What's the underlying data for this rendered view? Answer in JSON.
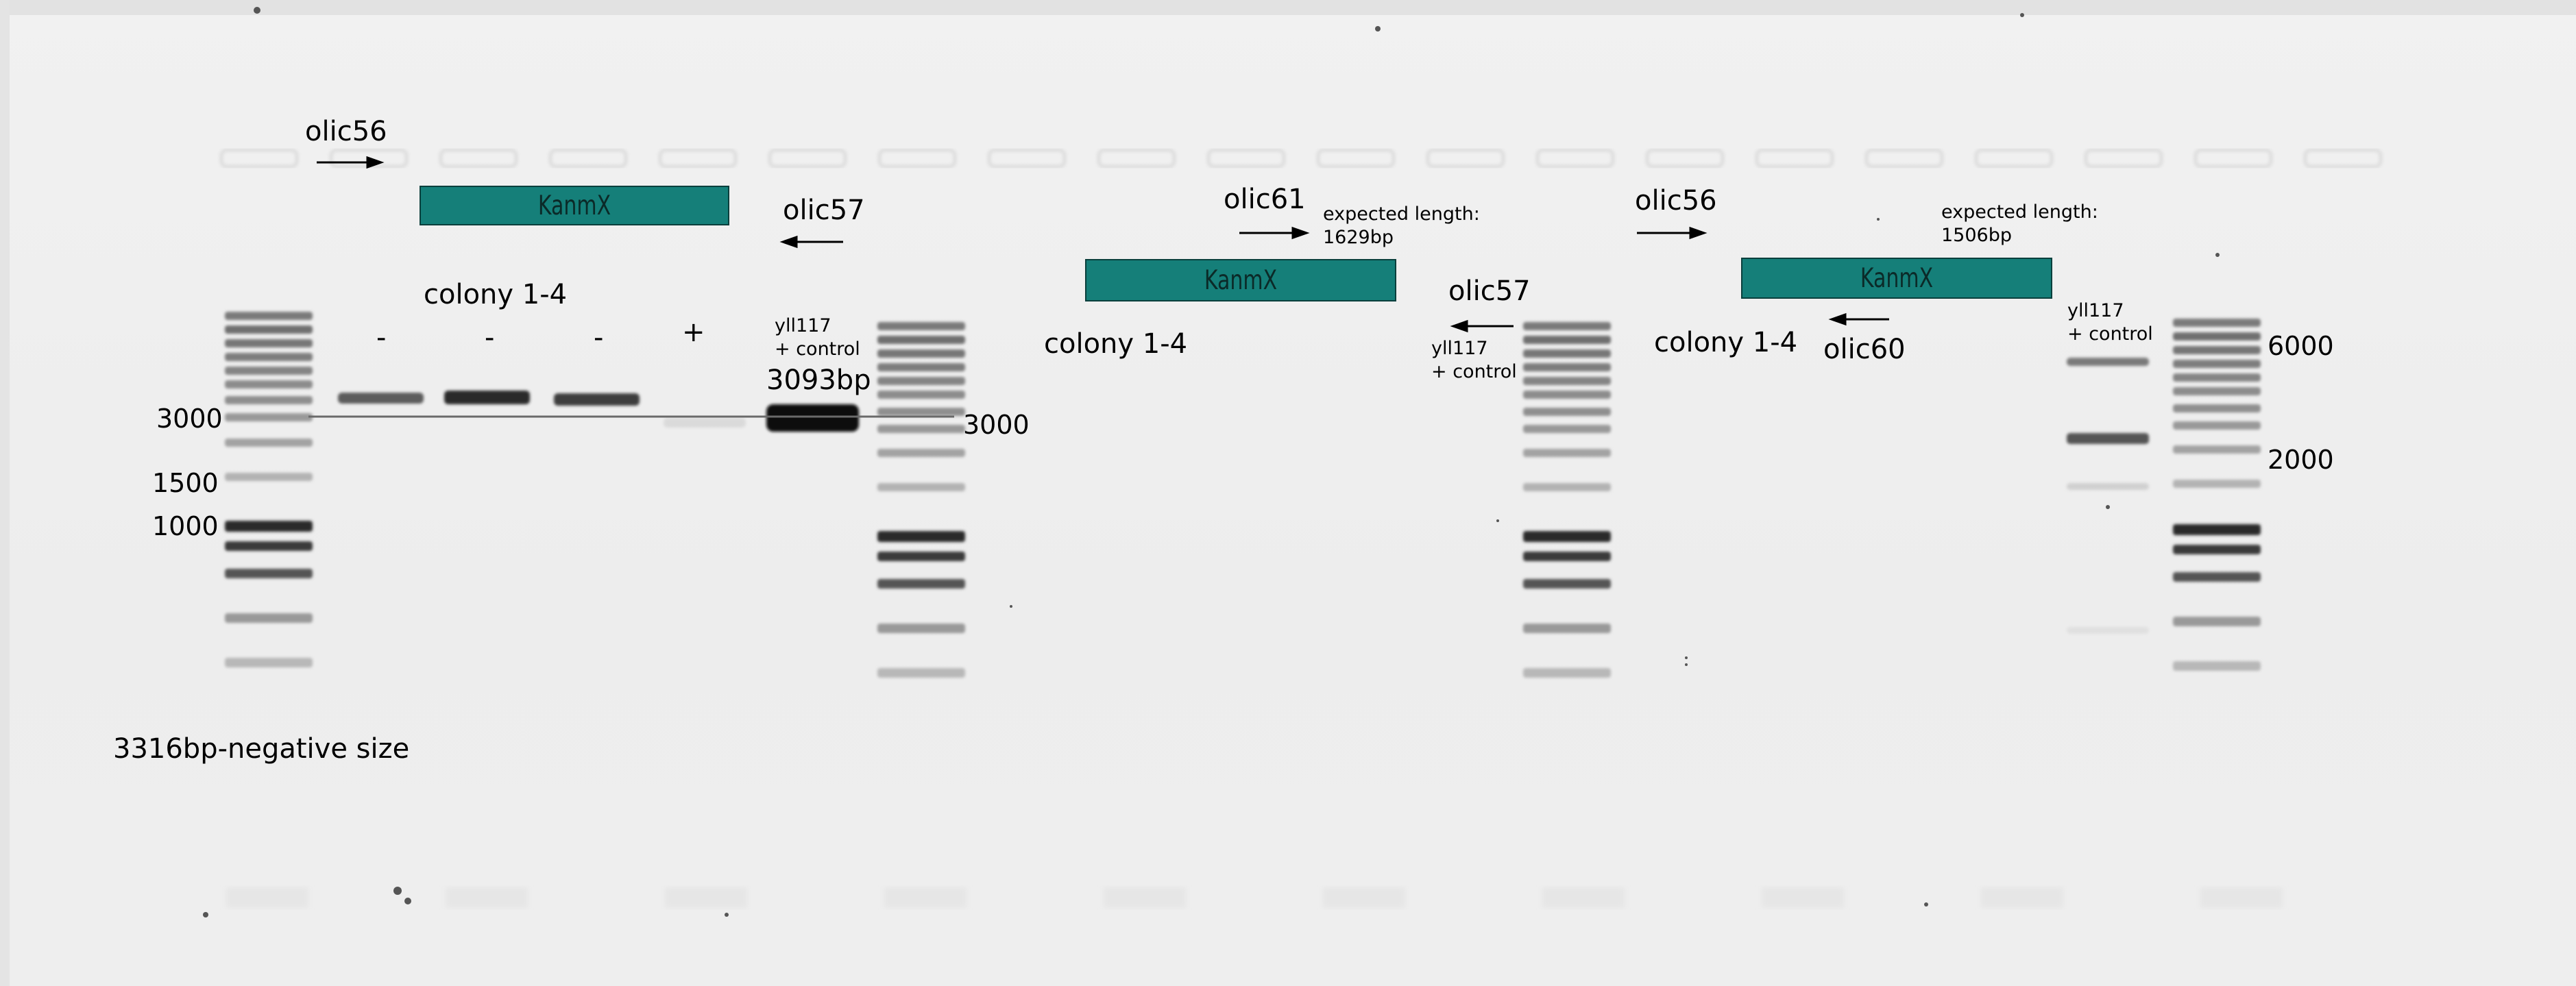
{
  "gel": {
    "bar_color": "#157f79",
    "labels": {
      "olic56_a": "olic56",
      "olic57_a": "olic57",
      "olic61": "olic61",
      "olic57_b": "olic57",
      "olic56_b": "olic56",
      "olic60": "olic60",
      "colony_a": "colony 1-4",
      "colony_b": "colony 1-4",
      "colony_c": "colony 1-4",
      "control_a": "yll117\n+ control",
      "control_b": "yll117\n+ control",
      "control_c": "yll117\n+ control",
      "size_3093": "3093bp",
      "expected_b": "expected length:\n1629bp",
      "expected_c": "expected length:\n1506bp",
      "ladder_3000_left": "3000",
      "ladder_1500": "1500",
      "ladder_1000": "1000",
      "ladder_3000_right": "3000",
      "ladder_6000": "6000",
      "ladder_2000": "2000",
      "negative_size": "3316bp-negative size"
    },
    "lane_signs": [
      "-",
      "-",
      "-",
      "+"
    ],
    "bars": [
      "KanmX",
      "KanmX",
      "KanmX"
    ],
    "arrow_icons": [
      "arrow-right-icon",
      "arrow-left-icon",
      "arrow-right-icon",
      "arrow-left-icon",
      "arrow-right-icon",
      "arrow-left-icon"
    ]
  }
}
